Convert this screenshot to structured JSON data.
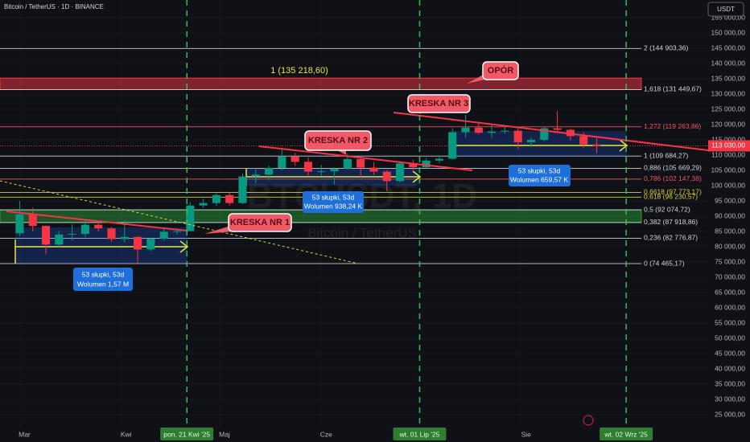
{
  "header": "Bitcoin / TetherUS · 1D · BINANCE",
  "currency": "USDT",
  "watermark": {
    "symbol": "BTCUSDT, 1D",
    "name": "Bitcoin / TetherUS"
  },
  "chart_data": {
    "type": "candlestick",
    "up_color": "#089981",
    "down_color": "#f23645",
    "xlim": [
      "2025-02-23",
      "2025-09-27"
    ],
    "ylim": [
      20790,
      160790
    ],
    "yticks": [
      {
        "value": 25000,
        "label": "25 000,00"
      },
      {
        "value": 30000,
        "label": "30 000,00"
      },
      {
        "value": 35000,
        "label": "35 000,00"
      },
      {
        "value": 40000,
        "label": "40 000,00"
      },
      {
        "value": 45000,
        "label": "45 000,00"
      },
      {
        "value": 50000,
        "label": "50 000,00"
      },
      {
        "value": 55000,
        "label": "55 000,00"
      },
      {
        "value": 60000,
        "label": "60 000,00"
      },
      {
        "value": 65000,
        "label": "65 000,00"
      },
      {
        "value": 70000,
        "label": "70 000,00"
      },
      {
        "value": 75000,
        "label": "75 000,00"
      },
      {
        "value": 80000,
        "label": "80 000,00"
      },
      {
        "value": 85000,
        "label": "85 000,00"
      },
      {
        "value": 90000,
        "label": "90 000,00"
      },
      {
        "value": 95000,
        "label": "95 000,00"
      },
      {
        "value": 100000,
        "label": "100 000,00"
      },
      {
        "value": 105000,
        "label": "105 000,00"
      },
      {
        "value": 110000,
        "label": "110 000,00"
      },
      {
        "value": 115000,
        "label": "115 000,00"
      },
      {
        "value": 120000,
        "label": "120 000,00"
      },
      {
        "value": 125000,
        "label": "125 000,00"
      },
      {
        "value": 130000,
        "label": "130 000,00"
      },
      {
        "value": 135000,
        "label": "135 000,00"
      },
      {
        "value": 140000,
        "label": "140 000,00"
      },
      {
        "value": 145000,
        "label": "145 000,00"
      },
      {
        "value": 150000,
        "label": "150 000,00"
      },
      {
        "value": 155000,
        "label": "155 000,00"
      }
    ],
    "xticks": [
      {
        "value": "2025-03-01",
        "label": "Mar"
      },
      {
        "value": "2025-04-01",
        "label": "Kwi"
      },
      {
        "value": "2025-05-01",
        "label": "Maj"
      },
      {
        "value": "2025-06-01",
        "label": "Cze"
      },
      {
        "value": "2025-08-01",
        "label": "Sie"
      }
    ],
    "date_markers": [
      {
        "value": "2025-04-21",
        "label": "pon. 21 Kwi '25"
      },
      {
        "value": "2025-07-01",
        "label": "wt. 01 Lip '25"
      },
      {
        "value": "2025-09-02",
        "label": "wt. 02 Wrz '25"
      }
    ],
    "x": [
      "2025-03-01",
      "2025-03-05",
      "2025-03-09",
      "2025-03-13",
      "2025-03-17",
      "2025-03-21",
      "2025-03-25",
      "2025-03-29",
      "2025-04-02",
      "2025-04-06",
      "2025-04-10",
      "2025-04-14",
      "2025-04-18",
      "2025-04-22",
      "2025-04-26",
      "2025-04-30",
      "2025-05-04",
      "2025-05-08",
      "2025-05-12",
      "2025-05-16",
      "2025-05-20",
      "2025-05-24",
      "2025-05-28",
      "2025-06-01",
      "2025-06-05",
      "2025-06-09",
      "2025-06-13",
      "2025-06-17",
      "2025-06-21",
      "2025-06-25",
      "2025-06-29",
      "2025-07-03",
      "2025-07-07",
      "2025-07-11",
      "2025-07-15",
      "2025-07-19",
      "2025-07-23",
      "2025-07-27",
      "2025-07-31",
      "2025-08-04",
      "2025-08-08",
      "2025-08-12",
      "2025-08-16",
      "2025-08-20",
      "2025-08-24"
    ],
    "open": [
      84400,
      90600,
      86800,
      80700,
      84000,
      84200,
      87200,
      86000,
      82500,
      83200,
      79100,
      82600,
      84900,
      85100,
      93500,
      94300,
      96900,
      94300,
      103000,
      103600,
      105800,
      109600,
      107800,
      104600,
      104700,
      105600,
      108700,
      105900,
      104600,
      101500,
      107300,
      106000,
      108200,
      108800,
      117500,
      119000,
      117300,
      117700,
      118000,
      114200,
      115000,
      118800,
      118300,
      116200,
      113500
    ],
    "high": [
      95000,
      92800,
      87000,
      85200,
      87400,
      88700,
      88500,
      86500,
      88500,
      83500,
      83000,
      85800,
      85400,
      94600,
      95700,
      97500,
      97800,
      104000,
      105700,
      106500,
      111900,
      110700,
      109300,
      106800,
      106000,
      110600,
      109000,
      107700,
      105000,
      108100,
      108500,
      109100,
      109700,
      118800,
      123200,
      120600,
      120000,
      119800,
      118900,
      115700,
      119300,
      124500,
      118600,
      117500,
      115600
    ],
    "low": [
      83500,
      85000,
      77500,
      79900,
      82000,
      83200,
      85000,
      81600,
      81500,
      74500,
      78500,
      82000,
      84000,
      85000,
      92800,
      93400,
      93500,
      94000,
      100800,
      102000,
      105000,
      106500,
      103000,
      103200,
      100400,
      105200,
      102800,
      103500,
      98200,
      101000,
      105100,
      105700,
      107400,
      108500,
      115800,
      116800,
      115700,
      117000,
      112000,
      112700,
      114500,
      117600,
      114700,
      112400,
      110600
    ],
    "close": [
      90600,
      86800,
      80700,
      84000,
      84200,
      87200,
      86000,
      82500,
      83200,
      79100,
      82600,
      84900,
      85100,
      93500,
      94300,
      96900,
      94300,
      103000,
      103600,
      105800,
      109600,
      107800,
      104600,
      104700,
      105600,
      108700,
      105900,
      104600,
      101500,
      107300,
      106000,
      108200,
      108800,
      117500,
      119000,
      117300,
      117700,
      118000,
      114200,
      115000,
      118800,
      118300,
      116200,
      113500,
      113000
    ],
    "last_price": {
      "value": 113030,
      "label": "113 030,00"
    },
    "fib_levels": [
      {
        "value": 144903.36,
        "label": "2 (144 903,36)",
        "color": "#d1d4dc"
      },
      {
        "value": 131449.67,
        "label": "1,618 (131 449,67)",
        "color": "#d1d4dc"
      },
      {
        "value": 119263.86,
        "label": "1,272 (119 263,86)",
        "color": "#f7525f"
      },
      {
        "value": 109684.27,
        "label": "1 (109 684,27)",
        "color": "#d1d4dc"
      },
      {
        "value": 105669.29,
        "label": "0,886 (105 669,29)",
        "color": "#d1d4dc"
      },
      {
        "value": 102147.38,
        "label": "0,786 (102 147,38)",
        "color": "#f7525f"
      },
      {
        "value": 97773.17,
        "label": "0,6618 (97 773,17)",
        "color": "#d4d43a"
      },
      {
        "value": 96230.57,
        "label": "0,618 (96 230,57)",
        "color": "#d4d43a"
      },
      {
        "value": 92074.72,
        "label": "0,5 (92 074,72)",
        "color": "#d1d4dc"
      },
      {
        "value": 87918.86,
        "label": "0,382 (87 918,86)",
        "color": "#d1d4dc"
      },
      {
        "value": 82776.87,
        "label": "0,236 (82 776,87)",
        "color": "#d1d4dc"
      },
      {
        "value": 74465.17,
        "label": "0 (74 465,17)",
        "color": "#d1d4dc"
      }
    ],
    "zones": [
      {
        "low": 131449.67,
        "high": 135218.6,
        "label": "1 (135 218,60)",
        "color": "#f23645"
      },
      {
        "low": 87918.86,
        "high": 92074.72,
        "color": "#2e9a3a"
      }
    ]
  },
  "callouts": [
    "OPÓR",
    "KRESKA NR 3",
    "KRESKA NR 2",
    "KRESKA NR 1"
  ],
  "measurements": [
    {
      "bars": "53 słupki, 53d",
      "volume": "Wolumen 1,57 M"
    },
    {
      "bars": "53 słupki, 53d",
      "volume": "Wolumen 938,24 K"
    },
    {
      "bars": "53 słupki, 53d",
      "volume": "Wolumen 659,57 K"
    }
  ]
}
